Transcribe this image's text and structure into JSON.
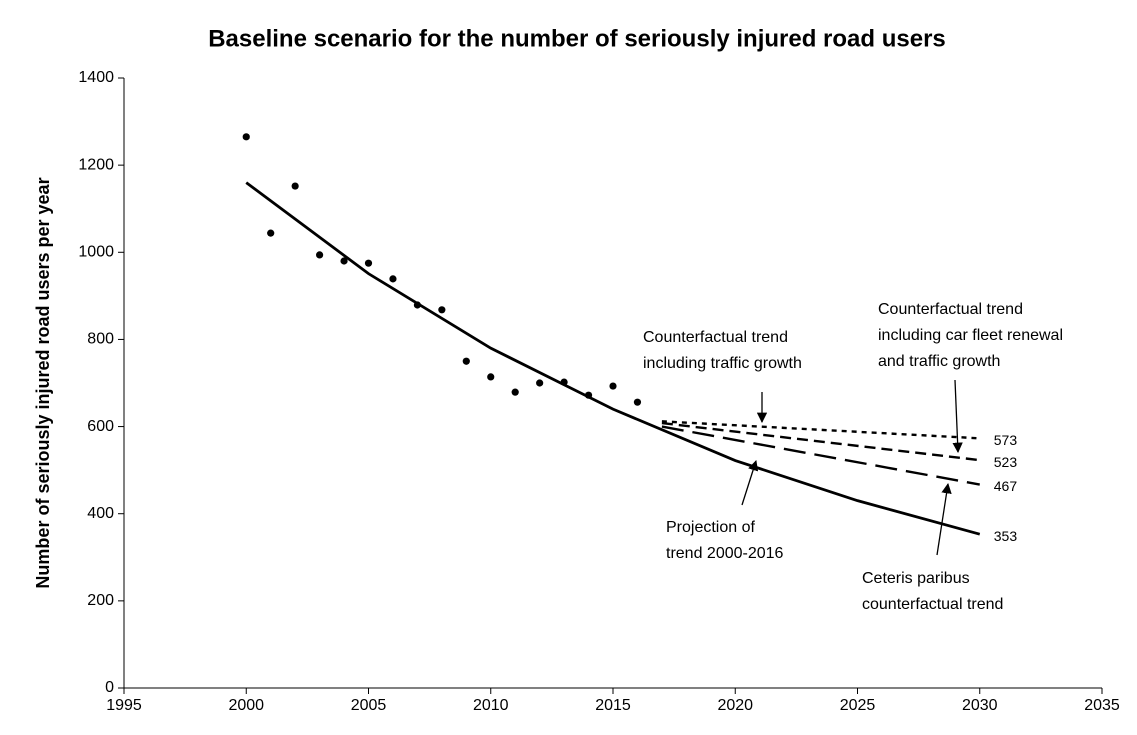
{
  "chart_data": {
    "type": "line",
    "title": "Baseline scenario for the number of seriously injured road users",
    "y_label": "Number of seriously injured road users per year",
    "xlim": [
      1995,
      2035
    ],
    "xticks": [
      1995,
      2000,
      2005,
      2010,
      2015,
      2020,
      2025,
      2030,
      2035
    ],
    "ylim": [
      0,
      1400
    ],
    "yticks": [
      0,
      200,
      400,
      600,
      800,
      1000,
      1200,
      1400
    ],
    "grid": false,
    "series": [
      {
        "style": "dots",
        "color": "#000000",
        "x": [
          2000,
          2001,
          2002,
          2003,
          2004,
          2005,
          2006,
          2007,
          2008,
          2009,
          2010,
          2011,
          2012,
          2013,
          2014,
          2015,
          2016
        ],
        "values": [
          1265,
          1044,
          1152,
          994,
          980,
          975,
          939,
          879,
          868,
          750,
          714,
          679,
          700,
          702,
          672,
          693,
          656
        ]
      },
      {
        "style": "solid",
        "color": "#000000",
        "x": [
          2000,
          2005,
          2010,
          2015,
          2020,
          2025,
          2030
        ],
        "values": [
          1160,
          951,
          780,
          640,
          522,
          430,
          353
        ]
      },
      {
        "style": "short-dash",
        "color": "#000000",
        "x": [
          2017,
          2030
        ],
        "values": [
          612,
          573
        ]
      },
      {
        "style": "dash",
        "color": "#000000",
        "x": [
          2017,
          2030
        ],
        "values": [
          608,
          523
        ]
      },
      {
        "style": "long-dash",
        "color": "#000000",
        "x": [
          2017,
          2030
        ],
        "values": [
          600,
          467
        ]
      }
    ],
    "annotations": [
      {
        "lines": [
          "Counterfactual trend",
          "including traffic growth"
        ]
      },
      {
        "lines": [
          "Counterfactual trend",
          "including car fleet renewal",
          "and traffic growth"
        ]
      },
      {
        "lines": [
          "Projection of",
          "trend 2000-2016"
        ]
      },
      {
        "lines": [
          "Ceteris paribus",
          "counterfactual trend"
        ]
      }
    ]
  }
}
